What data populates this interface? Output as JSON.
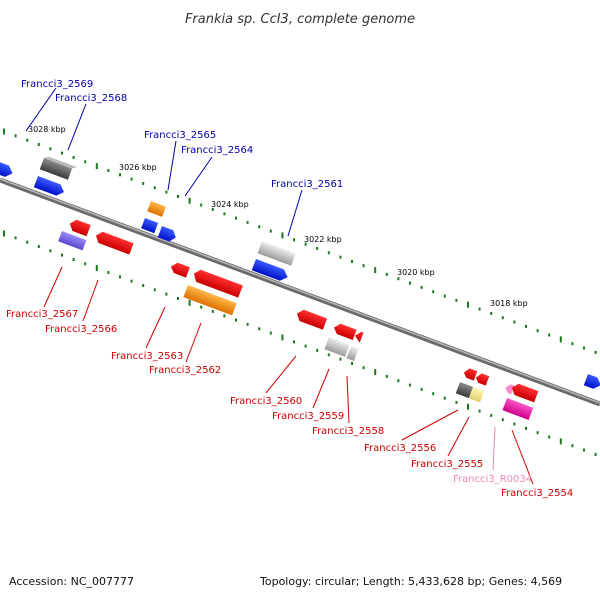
{
  "title": "Frankia sp. CcI3, complete genome",
  "accession_text": "Accession: NC_007777",
  "summary_text": "Topology: circular; Length: 5,433,628 bp; Genes: 4,569",
  "scale_labels": [
    "3028 kbp",
    "3026 kbp",
    "3024 kbp",
    "3022 kbp",
    "3020 kbp",
    "3018 kbp"
  ],
  "colors": {
    "forward_label": "#0000aa",
    "reverse_label": "#cc0000",
    "rna_label": "#ee88bb",
    "backbone": "#808080",
    "ticks": "#1a7a1a"
  },
  "genes_top": [
    {
      "label": "Francci3_2569"
    },
    {
      "label": "Francci3_2568"
    },
    {
      "label": "Francci3_2565"
    },
    {
      "label": "Francci3_2564"
    },
    {
      "label": "Francci3_2561"
    }
  ],
  "genes_bottom": [
    {
      "label": "Francci3_2567"
    },
    {
      "label": "Francci3_2566"
    },
    {
      "label": "Francci3_2563"
    },
    {
      "label": "Francci3_2562"
    },
    {
      "label": "Francci3_2560"
    },
    {
      "label": "Francci3_2559"
    },
    {
      "label": "Francci3_2558"
    },
    {
      "label": "Francci3_2556"
    },
    {
      "label": "Francci3_2555"
    },
    {
      "label": "Francci3_R0034"
    },
    {
      "label": "Francci3_2554"
    }
  ]
}
